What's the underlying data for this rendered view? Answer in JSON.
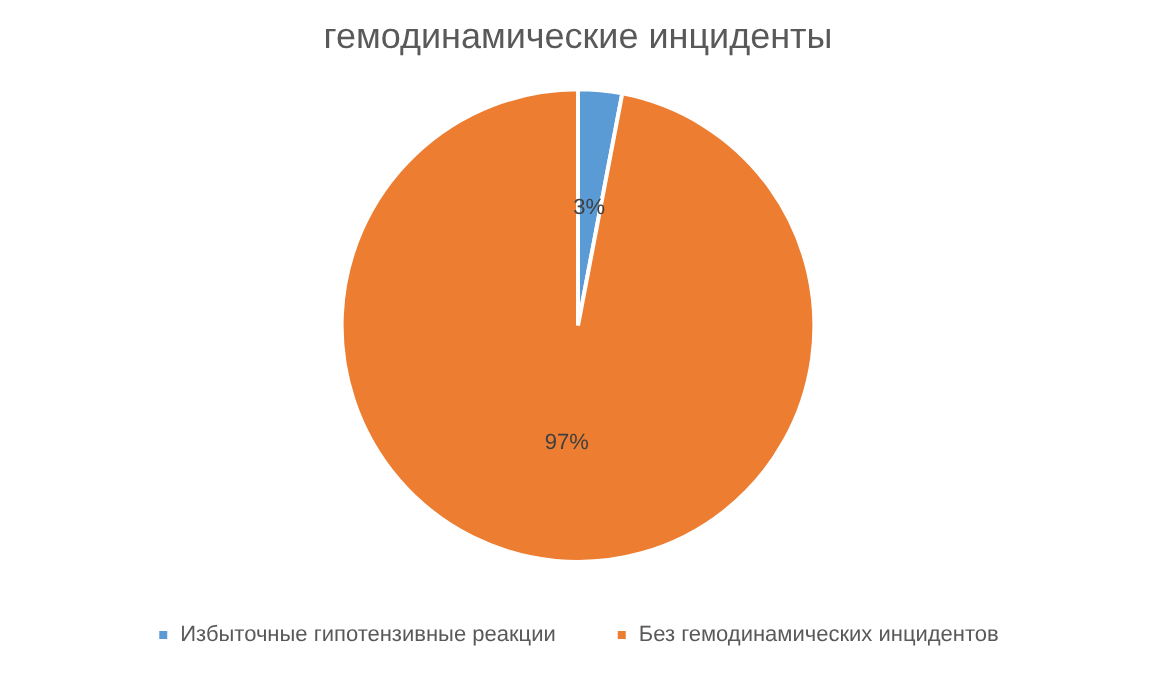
{
  "chart_data": {
    "type": "pie",
    "title": "гемодинамические инциденты",
    "categories": [
      "Избыточные гипотензивные реакции",
      "Без гемодинамических инцидентов"
    ],
    "values": [
      3,
      97
    ],
    "colors": [
      "#5b9bd5",
      "#ed7d31"
    ],
    "value_labels": [
      "3%",
      "97%"
    ],
    "legend": "bottom"
  }
}
